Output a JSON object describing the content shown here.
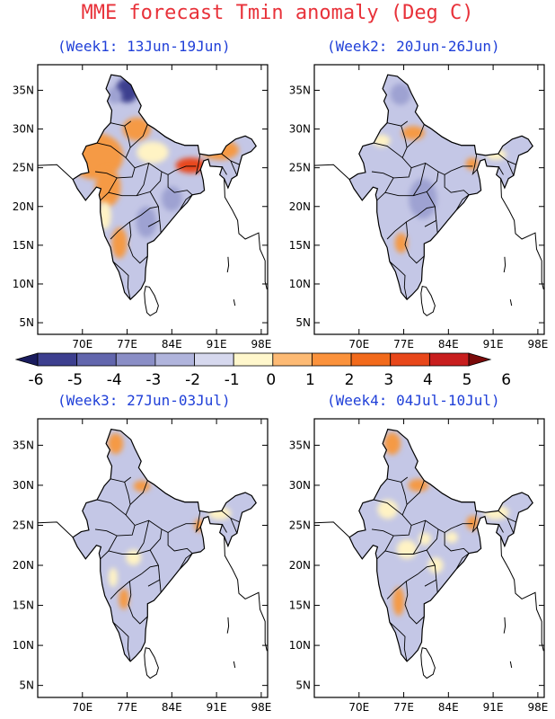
{
  "title": "MME forecast Tmin anomaly (Deg C)",
  "panels": [
    {
      "label": "(Week1: 13Jun-19Jun)"
    },
    {
      "label": "(Week2: 20Jun-26Jun)"
    },
    {
      "label": "(Week3: 27Jun-03Jul)"
    },
    {
      "label": "(Week4: 04Jul-10Jul)"
    }
  ],
  "lon_ticks": [
    "70E",
    "77E",
    "84E",
    "91E",
    "98E"
  ],
  "lat_ticks": [
    "35N",
    "30N",
    "25N",
    "20N",
    "15N",
    "10N",
    "5N"
  ],
  "colorbar": {
    "labels": [
      "-6",
      "-5",
      "-4",
      "-3",
      "-2",
      "-1",
      "0",
      "1",
      "2",
      "3",
      "4",
      "5",
      "6"
    ],
    "colors": [
      "#1a1c5e",
      "#3d3f8f",
      "#6266ad",
      "#8a8ec6",
      "#b0b4dc",
      "#d6d8ee",
      "#fff7cc",
      "#fdba74",
      "#fb923c",
      "#f26a1b",
      "#e8471a",
      "#c81e1e",
      "#7a0a0a"
    ]
  },
  "region_colors": {
    "base": "#c4c7e6",
    "cool": "#9ea2d2",
    "cold": "#3d3f8f",
    "neutral": "#fff3c4",
    "warm": "#f59a45",
    "hot": "#e8471a"
  }
}
